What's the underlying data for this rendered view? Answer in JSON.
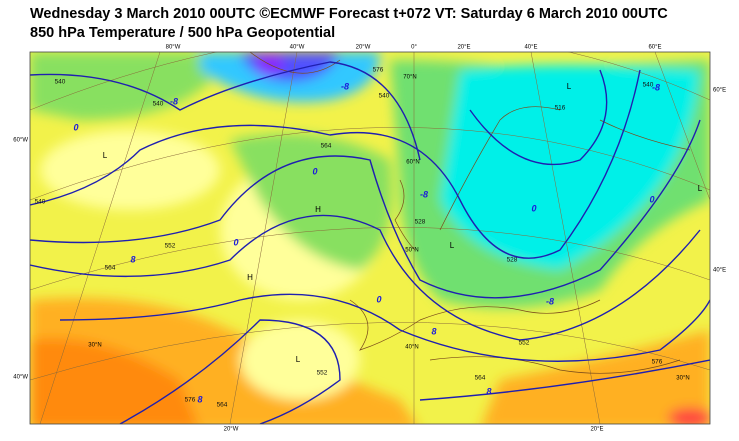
{
  "header": {
    "title": "Wednesday 3 March 2010 00UTC ©ECMWF Forecast t+072 VT: Saturday 6 March 2010 00UTC",
    "subtitle": "850 hPa Temperature / 500 hPa Geopotential"
  },
  "map": {
    "lon_labels_top": [
      "80°W",
      "40°W",
      "20°W",
      "0°",
      "20°E",
      "40°E",
      "60°E"
    ],
    "lon_labels_bottom": [
      "20°W",
      "20°E"
    ],
    "lat_labels_left": [
      "60°W",
      "40°W"
    ],
    "lat_labels_right": [
      "60°E",
      "40°E"
    ],
    "lat_labels_inner": [
      "70°N",
      "60°N",
      "50°N",
      "40°N",
      "30°N",
      "30°N"
    ],
    "geopotential_labels": [
      "540",
      "540",
      "540",
      "552",
      "564",
      "576",
      "564",
      "552",
      "564",
      "540",
      "576",
      "516",
      "528",
      "552",
      "564",
      "576",
      "540",
      "528"
    ],
    "temperature_labels": [
      "0",
      "-8",
      "-8",
      "0",
      "0",
      "8",
      "0",
      "-8",
      "0",
      "-8",
      "8",
      "8",
      "8",
      "0",
      "-8"
    ],
    "centers": [
      "L",
      "H",
      "H",
      "L",
      "L",
      "L",
      "L"
    ]
  }
}
